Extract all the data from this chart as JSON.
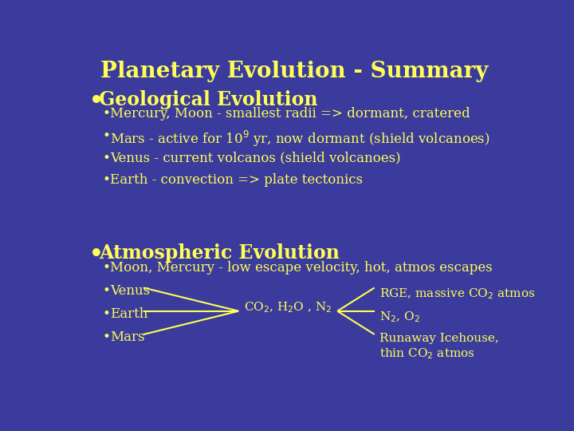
{
  "title": "Planetary Evolution - Summary",
  "bg_color": "#3B3B9E",
  "text_color": "#FFFF55",
  "title_fontsize": 20,
  "section_fontsize": 17,
  "body_fontsize": 12,
  "geo_header": "Geological Evolution",
  "geo_items": [
    "Mercury, Moon - smallest radii => dormant, cratered",
    "Mars - active for 10$^{9}$ yr, now dormant (shield volcanoes)",
    "Venus - current volcanos (shield volcanoes)",
    "Earth - convection => plate tectonics"
  ],
  "atmo_header": "Atmospheric Evolution",
  "atmo_item0": "Moon, Mercury - low escape velocity, hot, atmos escapes",
  "atmo_planet_labels": [
    "Venus",
    "Earth",
    "Mars"
  ],
  "atmos_middle_label": "CO$_{2}$, H$_{2}$O , N$_{2}$",
  "atmos_right_labels": [
    "RGE, massive CO$_{2}$ atmos",
    "N$_{2}$, O$_{2}$",
    "Runaway Icehouse,\nthin CO$_{2}$ atmos"
  ]
}
